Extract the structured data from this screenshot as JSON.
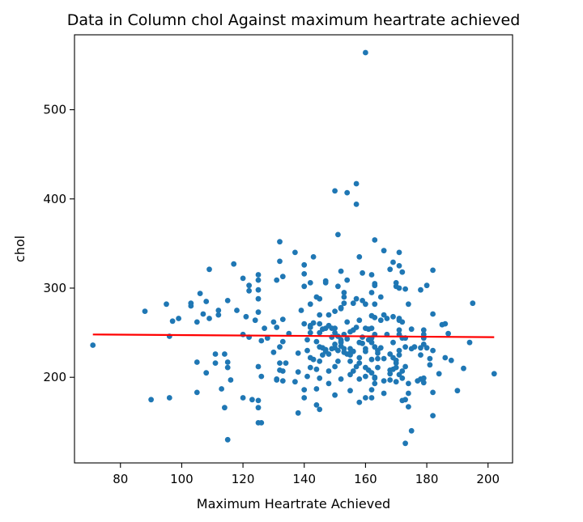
{
  "chart_data": {
    "type": "scatter",
    "title": "Data in Column chol Against maximum heartrate achieved",
    "xlabel": "Maximum Heartrate Achieved",
    "ylabel": "chol",
    "xlim": [
      65,
      208
    ],
    "ylim": [
      104,
      584
    ],
    "xticks": [
      80,
      100,
      120,
      140,
      160,
      180,
      200
    ],
    "yticks": [
      200,
      300,
      400,
      500
    ],
    "grid": false,
    "legend": "none",
    "point_color": "#1f77b4",
    "trend_color": "#ff0000",
    "trend_line": {
      "x": [
        71,
        202
      ],
      "y": [
        248,
        245
      ]
    },
    "points": [
      [
        71,
        236
      ],
      [
        88,
        274
      ],
      [
        90,
        175
      ],
      [
        95,
        282
      ],
      [
        96,
        177
      ],
      [
        96,
        246
      ],
      [
        97,
        263
      ],
      [
        99,
        266
      ],
      [
        103,
        283
      ],
      [
        103,
        280
      ],
      [
        105,
        217
      ],
      [
        105,
        183
      ],
      [
        105,
        262
      ],
      [
        106,
        294
      ],
      [
        107,
        271
      ],
      [
        108,
        285
      ],
      [
        108,
        205
      ],
      [
        109,
        321
      ],
      [
        109,
        266
      ],
      [
        111,
        226
      ],
      [
        111,
        216
      ],
      [
        112,
        270
      ],
      [
        112,
        275
      ],
      [
        113,
        187
      ],
      [
        114,
        226
      ],
      [
        114,
        166
      ],
      [
        115,
        130
      ],
      [
        115,
        286
      ],
      [
        115,
        211
      ],
      [
        115,
        217
      ],
      [
        116,
        197
      ],
      [
        117,
        327
      ],
      [
        118,
        275
      ],
      [
        120,
        177
      ],
      [
        120,
        248
      ],
      [
        120,
        311
      ],
      [
        121,
        268
      ],
      [
        122,
        303
      ],
      [
        122,
        297
      ],
      [
        122,
        245
      ],
      [
        123,
        175
      ],
      [
        124,
        264
      ],
      [
        125,
        309
      ],
      [
        125,
        288
      ],
      [
        125,
        315
      ],
      [
        125,
        298
      ],
      [
        125,
        273
      ],
      [
        125,
        212
      ],
      [
        125,
        174
      ],
      [
        125,
        166
      ],
      [
        125,
        149
      ],
      [
        126,
        149
      ],
      [
        126,
        201
      ],
      [
        126,
        241
      ],
      [
        127,
        255
      ],
      [
        128,
        244
      ],
      [
        130,
        228
      ],
      [
        130,
        262
      ],
      [
        131,
        256
      ],
      [
        131,
        198
      ],
      [
        131,
        309
      ],
      [
        131,
        197
      ],
      [
        132,
        208
      ],
      [
        132,
        234
      ],
      [
        132,
        216
      ],
      [
        132,
        352
      ],
      [
        132,
        330
      ],
      [
        133,
        313
      ],
      [
        133,
        207
      ],
      [
        133,
        265
      ],
      [
        133,
        196
      ],
      [
        133,
        240
      ],
      [
        134,
        216
      ],
      [
        135,
        249
      ],
      [
        137,
        340
      ],
      [
        137,
        195
      ],
      [
        138,
        227
      ],
      [
        138,
        160
      ],
      [
        138,
        206
      ],
      [
        139,
        275
      ],
      [
        140,
        186
      ],
      [
        140,
        177
      ],
      [
        140,
        260
      ],
      [
        140,
        326
      ],
      [
        140,
        302
      ],
      [
        140,
        316
      ],
      [
        141,
        242
      ],
      [
        141,
        201
      ],
      [
        141,
        230
      ],
      [
        142,
        258
      ],
      [
        142,
        222
      ],
      [
        142,
        211
      ],
      [
        142,
        282
      ],
      [
        142,
        256
      ],
      [
        142,
        306
      ],
      [
        142,
        250
      ],
      [
        143,
        220
      ],
      [
        143,
        335
      ],
      [
        143,
        261
      ],
      [
        144,
        209
      ],
      [
        144,
        187
      ],
      [
        144,
        169
      ],
      [
        144,
        240
      ],
      [
        144,
        290
      ],
      [
        145,
        260
      ],
      [
        145,
        250
      ],
      [
        145,
        218
      ],
      [
        145,
        199
      ],
      [
        145,
        234
      ],
      [
        145,
        270
      ],
      [
        145,
        164
      ],
      [
        145,
        288
      ],
      [
        146,
        233
      ],
      [
        146,
        225
      ],
      [
        146,
        254
      ],
      [
        147,
        308
      ],
      [
        147,
        255
      ],
      [
        147,
        229
      ],
      [
        147,
        231
      ],
      [
        147,
        306
      ],
      [
        148,
        226
      ],
      [
        148,
        270
      ],
      [
        148,
        207
      ],
      [
        148,
        193
      ],
      [
        148,
        258
      ],
      [
        149,
        255
      ],
      [
        149,
        232
      ],
      [
        149,
        245
      ],
      [
        150,
        233
      ],
      [
        150,
        274
      ],
      [
        150,
        212
      ],
      [
        150,
        255
      ],
      [
        150,
        409
      ],
      [
        150,
        250
      ],
      [
        150,
        237
      ],
      [
        150,
        180
      ],
      [
        151,
        230
      ],
      [
        151,
        246
      ],
      [
        151,
        360
      ],
      [
        151,
        302
      ],
      [
        151,
        218
      ],
      [
        152,
        198
      ],
      [
        152,
        277
      ],
      [
        152,
        235
      ],
      [
        152,
        240
      ],
      [
        152,
        278
      ],
      [
        152,
        319
      ],
      [
        152,
        242
      ],
      [
        152,
        239
      ],
      [
        153,
        295
      ],
      [
        153,
        283
      ],
      [
        153,
        290
      ],
      [
        153,
        232
      ],
      [
        153,
        228
      ],
      [
        153,
        248
      ],
      [
        154,
        226
      ],
      [
        154,
        407
      ],
      [
        154,
        309
      ],
      [
        154,
        262
      ],
      [
        154,
        243
      ],
      [
        155,
        218
      ],
      [
        155,
        251
      ],
      [
        155,
        227
      ],
      [
        155,
        203
      ],
      [
        155,
        185
      ],
      [
        155,
        232
      ],
      [
        155,
        225
      ],
      [
        156,
        207
      ],
      [
        156,
        229
      ],
      [
        156,
        253
      ],
      [
        156,
        283
      ],
      [
        157,
        417
      ],
      [
        157,
        394
      ],
      [
        157,
        212
      ],
      [
        157,
        288
      ],
      [
        157,
        256
      ],
      [
        158,
        239
      ],
      [
        158,
        216
      ],
      [
        158,
        172
      ],
      [
        158,
        198
      ],
      [
        158,
        335
      ],
      [
        158,
        264
      ],
      [
        158,
        222
      ],
      [
        159,
        238
      ],
      [
        159,
        245
      ],
      [
        159,
        317
      ],
      [
        159,
        286
      ],
      [
        160,
        177
      ],
      [
        160,
        564
      ],
      [
        160,
        232
      ],
      [
        160,
        201
      ],
      [
        160,
        211
      ],
      [
        160,
        229
      ],
      [
        160,
        255
      ],
      [
        160,
        282
      ],
      [
        161,
        254
      ],
      [
        161,
        208
      ],
      [
        161,
        242
      ],
      [
        162,
        244
      ],
      [
        162,
        295
      ],
      [
        162,
        205
      ],
      [
        162,
        255
      ],
      [
        162,
        315
      ],
      [
        162,
        269
      ],
      [
        162,
        239
      ],
      [
        162,
        177
      ],
      [
        162,
        186
      ],
      [
        162,
        220
      ],
      [
        163,
        303
      ],
      [
        163,
        200
      ],
      [
        163,
        234
      ],
      [
        163,
        248
      ],
      [
        163,
        199
      ],
      [
        163,
        305
      ],
      [
        163,
        354
      ],
      [
        163,
        193
      ],
      [
        163,
        282
      ],
      [
        163,
        267
      ],
      [
        164,
        221
      ],
      [
        164,
        227
      ],
      [
        164,
        230
      ],
      [
        164,
        211
      ],
      [
        165,
        264
      ],
      [
        165,
        290
      ],
      [
        165,
        233
      ],
      [
        166,
        182
      ],
      [
        166,
        270
      ],
      [
        166,
        342
      ],
      [
        166,
        196
      ],
      [
        166,
        221
      ],
      [
        167,
        248
      ],
      [
        167,
        266
      ],
      [
        168,
        204
      ],
      [
        168,
        197
      ],
      [
        168,
        321
      ],
      [
        168,
        208
      ],
      [
        168,
        226
      ],
      [
        169,
        209
      ],
      [
        169,
        329
      ],
      [
        169,
        239
      ],
      [
        169,
        268
      ],
      [
        169,
        222
      ],
      [
        170,
        306
      ],
      [
        170,
        302
      ],
      [
        170,
        219
      ],
      [
        170,
        211
      ],
      [
        170,
        195
      ],
      [
        170,
        216
      ],
      [
        171,
        230
      ],
      [
        171,
        203
      ],
      [
        171,
        300
      ],
      [
        171,
        264
      ],
      [
        171,
        340
      ],
      [
        171,
        325
      ],
      [
        171,
        225
      ],
      [
        171,
        248
      ],
      [
        171,
        253
      ],
      [
        171,
        266
      ],
      [
        172,
        207
      ],
      [
        172,
        199
      ],
      [
        172,
        174
      ],
      [
        172,
        244
      ],
      [
        172,
        262
      ],
      [
        172,
        318
      ],
      [
        173,
        234
      ],
      [
        173,
        126
      ],
      [
        173,
        299
      ],
      [
        173,
        175
      ],
      [
        173,
        244
      ],
      [
        173,
        212
      ],
      [
        174,
        193
      ],
      [
        174,
        182
      ],
      [
        174,
        167
      ],
      [
        174,
        282
      ],
      [
        175,
        254
      ],
      [
        175,
        232
      ],
      [
        175,
        140
      ],
      [
        176,
        234
      ],
      [
        177,
        196
      ],
      [
        178,
        298
      ],
      [
        178,
        198
      ],
      [
        178,
        225
      ],
      [
        178,
        233
      ],
      [
        179,
        244
      ],
      [
        179,
        237
      ],
      [
        179,
        253
      ],
      [
        179,
        248
      ],
      [
        179,
        199
      ],
      [
        179,
        194
      ],
      [
        180,
        233
      ],
      [
        180,
        303
      ],
      [
        181,
        221
      ],
      [
        181,
        214
      ],
      [
        182,
        271
      ],
      [
        182,
        320
      ],
      [
        182,
        230
      ],
      [
        182,
        157
      ],
      [
        182,
        183
      ],
      [
        184,
        204
      ],
      [
        185,
        259
      ],
      [
        186,
        222
      ],
      [
        186,
        260
      ],
      [
        187,
        249
      ],
      [
        188,
        219
      ],
      [
        190,
        185
      ],
      [
        192,
        210
      ],
      [
        194,
        239
      ],
      [
        195,
        283
      ],
      [
        202,
        204
      ]
    ]
  }
}
